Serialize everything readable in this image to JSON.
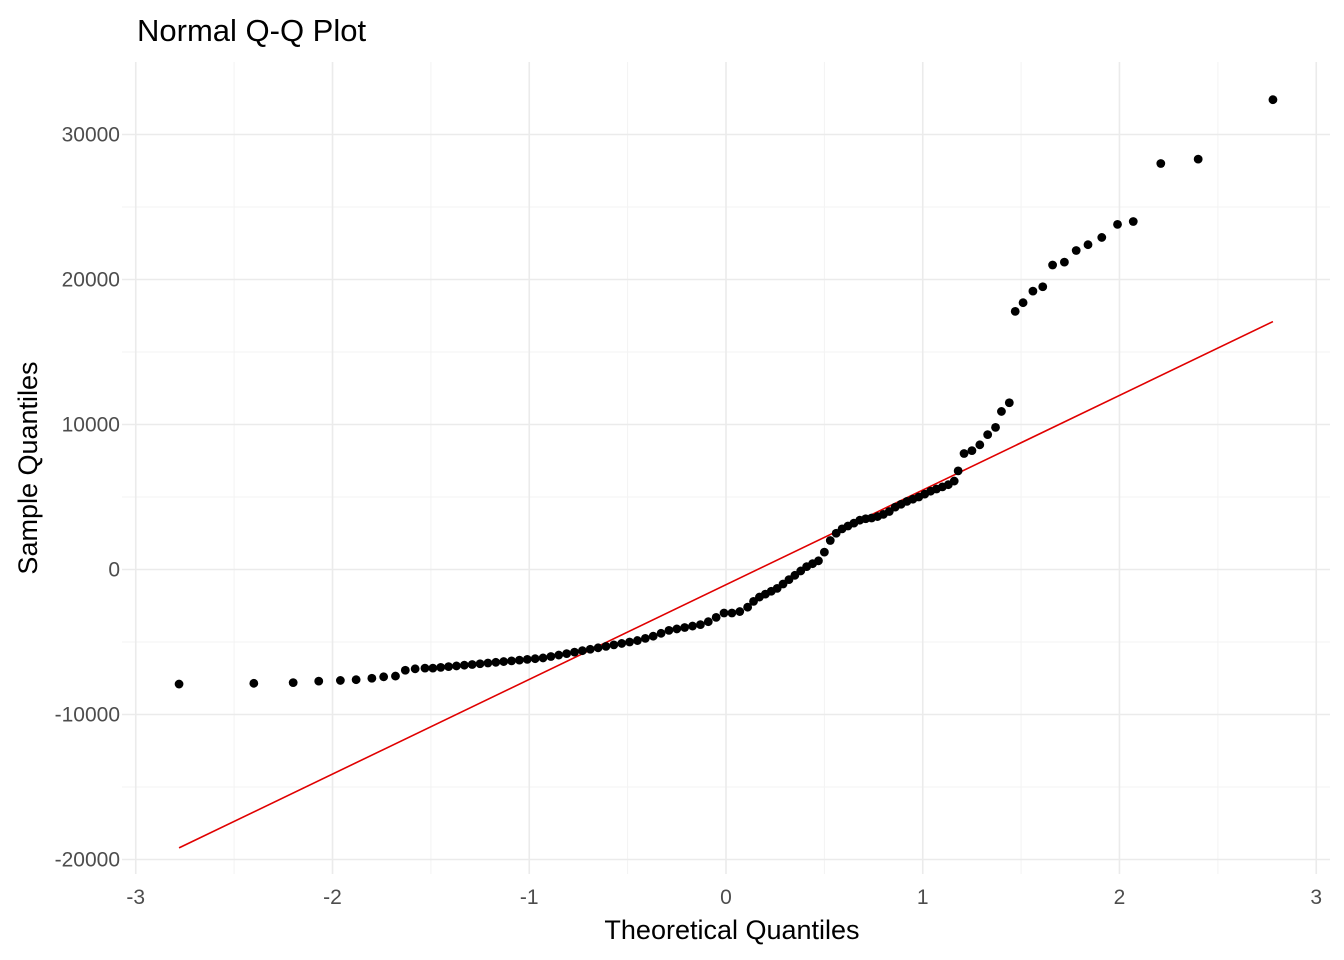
{
  "chart_data": {
    "type": "scatter",
    "title": "Normal Q-Q Plot",
    "xlabel": "Theoretical Quantiles",
    "ylabel": "Sample Quantiles",
    "xlim": [
      -3.07,
      3.07
    ],
    "ylim": [
      -21000,
      35000
    ],
    "x_ticks": [
      -3,
      -2,
      -1,
      0,
      1,
      2,
      3
    ],
    "x_tick_labels": [
      "-3",
      "-2",
      "-1",
      "0",
      "1",
      "2",
      "3"
    ],
    "y_ticks": [
      -20000,
      -10000,
      0,
      10000,
      20000,
      30000
    ],
    "y_tick_labels": [
      "-20000",
      "-10000",
      "0",
      "10000",
      "20000",
      "30000"
    ],
    "grid": true,
    "legend": "none",
    "colors": {
      "points": "#000000",
      "reference_line": "#e00000",
      "grid": "#ebebeb",
      "tick_text": "#4d4d4d"
    },
    "reference_line": {
      "x": [
        -2.78,
        2.78
      ],
      "y": [
        -19200,
        17100
      ]
    },
    "points": [
      {
        "x": -2.78,
        "y": -7900
      },
      {
        "x": -2.4,
        "y": -7850
      },
      {
        "x": -2.2,
        "y": -7800
      },
      {
        "x": -2.07,
        "y": -7700
      },
      {
        "x": -1.96,
        "y": -7650
      },
      {
        "x": -1.88,
        "y": -7600
      },
      {
        "x": -1.8,
        "y": -7500
      },
      {
        "x": -1.74,
        "y": -7400
      },
      {
        "x": -1.68,
        "y": -7350
      },
      {
        "x": -1.63,
        "y": -6950
      },
      {
        "x": -1.58,
        "y": -6850
      },
      {
        "x": -1.53,
        "y": -6800
      },
      {
        "x": -1.49,
        "y": -6800
      },
      {
        "x": -1.45,
        "y": -6750
      },
      {
        "x": -1.41,
        "y": -6700
      },
      {
        "x": -1.37,
        "y": -6650
      },
      {
        "x": -1.33,
        "y": -6600
      },
      {
        "x": -1.29,
        "y": -6550
      },
      {
        "x": -1.25,
        "y": -6500
      },
      {
        "x": -1.21,
        "y": -6450
      },
      {
        "x": -1.17,
        "y": -6400
      },
      {
        "x": -1.13,
        "y": -6350
      },
      {
        "x": -1.09,
        "y": -6300
      },
      {
        "x": -1.05,
        "y": -6250
      },
      {
        "x": -1.01,
        "y": -6200
      },
      {
        "x": -0.97,
        "y": -6150
      },
      {
        "x": -0.93,
        "y": -6100
      },
      {
        "x": -0.89,
        "y": -6000
      },
      {
        "x": -0.85,
        "y": -5900
      },
      {
        "x": -0.81,
        "y": -5800
      },
      {
        "x": -0.77,
        "y": -5700
      },
      {
        "x": -0.73,
        "y": -5600
      },
      {
        "x": -0.69,
        "y": -5500
      },
      {
        "x": -0.65,
        "y": -5400
      },
      {
        "x": -0.61,
        "y": -5300
      },
      {
        "x": -0.57,
        "y": -5200
      },
      {
        "x": -0.53,
        "y": -5100
      },
      {
        "x": -0.49,
        "y": -5000
      },
      {
        "x": -0.45,
        "y": -4900
      },
      {
        "x": -0.41,
        "y": -4750
      },
      {
        "x": -0.37,
        "y": -4600
      },
      {
        "x": -0.33,
        "y": -4400
      },
      {
        "x": -0.29,
        "y": -4200
      },
      {
        "x": -0.25,
        "y": -4100
      },
      {
        "x": -0.21,
        "y": -4000
      },
      {
        "x": -0.17,
        "y": -3900
      },
      {
        "x": -0.13,
        "y": -3800
      },
      {
        "x": -0.09,
        "y": -3600
      },
      {
        "x": -0.05,
        "y": -3300
      },
      {
        "x": -0.01,
        "y": -3000
      },
      {
        "x": 0.03,
        "y": -3000
      },
      {
        "x": 0.07,
        "y": -2900
      },
      {
        "x": 0.11,
        "y": -2600
      },
      {
        "x": 0.14,
        "y": -2200
      },
      {
        "x": 0.17,
        "y": -1900
      },
      {
        "x": 0.2,
        "y": -1700
      },
      {
        "x": 0.23,
        "y": -1500
      },
      {
        "x": 0.26,
        "y": -1300
      },
      {
        "x": 0.29,
        "y": -1000
      },
      {
        "x": 0.32,
        "y": -700
      },
      {
        "x": 0.35,
        "y": -400
      },
      {
        "x": 0.38,
        "y": -100
      },
      {
        "x": 0.41,
        "y": 200
      },
      {
        "x": 0.44,
        "y": 400
      },
      {
        "x": 0.47,
        "y": 600
      },
      {
        "x": 0.5,
        "y": 1200
      },
      {
        "x": 0.53,
        "y": 2000
      },
      {
        "x": 0.56,
        "y": 2500
      },
      {
        "x": 0.59,
        "y": 2800
      },
      {
        "x": 0.62,
        "y": 3000
      },
      {
        "x": 0.65,
        "y": 3200
      },
      {
        "x": 0.68,
        "y": 3400
      },
      {
        "x": 0.71,
        "y": 3500
      },
      {
        "x": 0.74,
        "y": 3550
      },
      {
        "x": 0.77,
        "y": 3650
      },
      {
        "x": 0.8,
        "y": 3800
      },
      {
        "x": 0.83,
        "y": 4000
      },
      {
        "x": 0.86,
        "y": 4300
      },
      {
        "x": 0.89,
        "y": 4500
      },
      {
        "x": 0.92,
        "y": 4700
      },
      {
        "x": 0.95,
        "y": 4850
      },
      {
        "x": 0.98,
        "y": 5000
      },
      {
        "x": 1.01,
        "y": 5200
      },
      {
        "x": 1.04,
        "y": 5400
      },
      {
        "x": 1.07,
        "y": 5550
      },
      {
        "x": 1.1,
        "y": 5700
      },
      {
        "x": 1.13,
        "y": 5850
      },
      {
        "x": 1.16,
        "y": 6100
      },
      {
        "x": 1.18,
        "y": 6800
      },
      {
        "x": 1.21,
        "y": 8000
      },
      {
        "x": 1.25,
        "y": 8200
      },
      {
        "x": 1.29,
        "y": 8600
      },
      {
        "x": 1.33,
        "y": 9300
      },
      {
        "x": 1.37,
        "y": 9800
      },
      {
        "x": 1.4,
        "y": 10900
      },
      {
        "x": 1.44,
        "y": 11500
      },
      {
        "x": 1.47,
        "y": 17800
      },
      {
        "x": 1.51,
        "y": 18400
      },
      {
        "x": 1.56,
        "y": 19200
      },
      {
        "x": 1.61,
        "y": 19500
      },
      {
        "x": 1.66,
        "y": 21000
      },
      {
        "x": 1.72,
        "y": 21200
      },
      {
        "x": 1.78,
        "y": 22000
      },
      {
        "x": 1.84,
        "y": 22400
      },
      {
        "x": 1.91,
        "y": 22900
      },
      {
        "x": 1.99,
        "y": 23800
      },
      {
        "x": 2.07,
        "y": 24000
      },
      {
        "x": 2.21,
        "y": 28000
      },
      {
        "x": 2.4,
        "y": 28300
      },
      {
        "x": 2.78,
        "y": 32400
      }
    ]
  }
}
